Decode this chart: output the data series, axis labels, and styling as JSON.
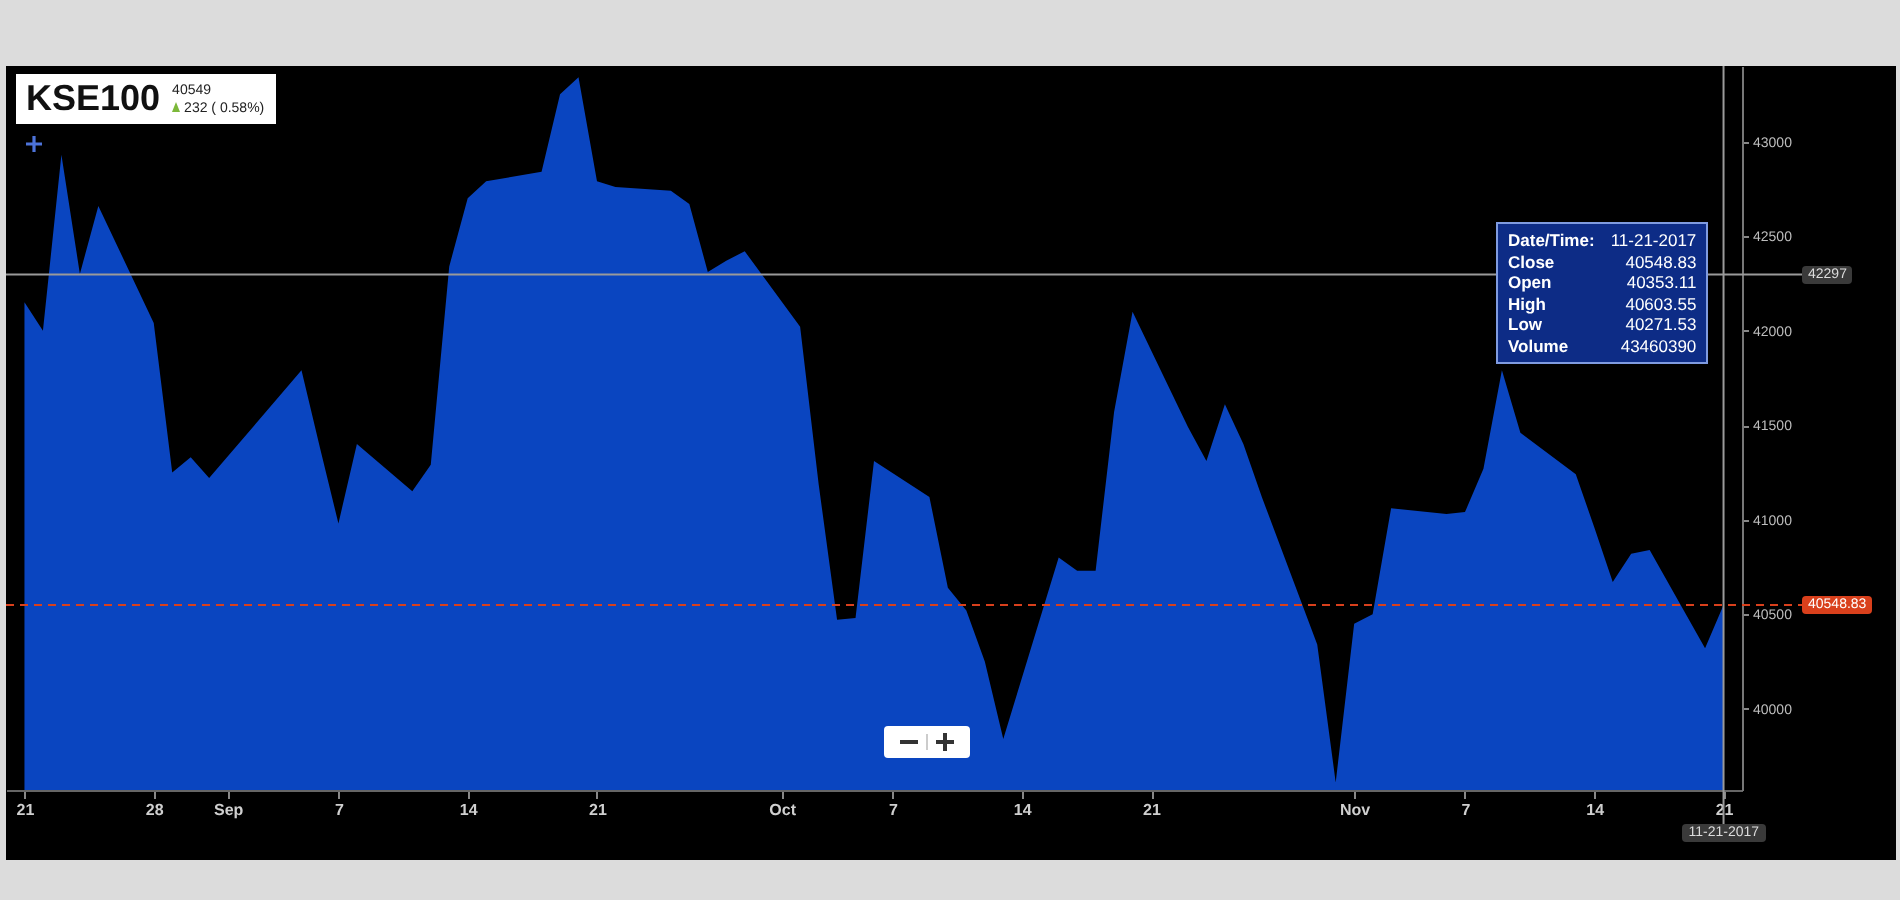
{
  "chart_data": {
    "type": "area",
    "title": "KSE100",
    "subtitle": "40549",
    "annotations": [
      "232 ( 0.58%)",
      "Date/Time:",
      "11-21-2017",
      "Close",
      "40548.83",
      "Open",
      "40353.11",
      "High",
      "40603.55",
      "Low",
      "40271.53",
      "Volume",
      "43460390"
    ],
    "x": [
      "2017-08-21",
      "2017-08-22",
      "2017-08-23",
      "2017-08-24",
      "2017-08-25",
      "2017-08-28",
      "2017-08-29",
      "2017-08-30",
      "2017-08-31",
      "2017-09-05",
      "2017-09-06",
      "2017-09-07",
      "2017-09-08",
      "2017-09-11",
      "2017-09-12",
      "2017-09-13",
      "2017-09-14",
      "2017-09-15",
      "2017-09-18",
      "2017-09-19",
      "2017-09-20",
      "2017-09-21",
      "2017-09-22",
      "2017-09-25",
      "2017-09-26",
      "2017-09-27",
      "2017-09-28",
      "2017-09-29",
      "2017-10-02",
      "2017-10-03",
      "2017-10-04",
      "2017-10-05",
      "2017-10-06",
      "2017-10-09",
      "2017-10-10",
      "2017-10-11",
      "2017-10-12",
      "2017-10-13",
      "2017-10-16",
      "2017-10-17",
      "2017-10-18",
      "2017-10-19",
      "2017-10-20",
      "2017-10-23",
      "2017-10-24",
      "2017-10-25",
      "2017-10-26",
      "2017-10-27",
      "2017-10-30",
      "2017-10-31",
      "2017-11-01",
      "2017-11-02",
      "2017-11-03",
      "2017-11-06",
      "2017-11-07",
      "2017-11-08",
      "2017-11-09",
      "2017-11-10",
      "2017-11-13",
      "2017-11-14",
      "2017-11-15",
      "2017-11-16",
      "2017-11-17",
      "2017-11-20",
      "2017-11-21"
    ],
    "series": [
      {
        "color": "#0a45c0",
        "values": [
          42150,
          42000,
          42930,
          42300,
          42660,
          42040,
          41250,
          41330,
          41220,
          41790,
          41380,
          40980,
          41400,
          41150,
          41290,
          42340,
          42700,
          42790,
          42840,
          43250,
          43340,
          42790,
          42760,
          42740,
          42670,
          42310,
          42370,
          42420,
          42020,
          41190,
          40470,
          40480,
          41310,
          41120,
          40640,
          40520,
          40250,
          39840,
          40800,
          40730,
          40730,
          41570,
          42100,
          41490,
          41310,
          41610,
          41400,
          41120,
          40340,
          39610,
          40450,
          40500,
          41060,
          41030,
          41040,
          41270,
          41790,
          41460,
          41240,
          40960,
          40670,
          40820,
          40840,
          40320,
          40548.83
        ]
      }
    ],
    "xlim": [
      "2017-08-20",
      "2017-11-22"
    ],
    "ylim": [
      39570,
      43400
    ],
    "xticks": [
      {
        "value": "2017-08-21",
        "label": "21"
      },
      {
        "value": "2017-08-28",
        "label": "28"
      },
      {
        "value": "2017-09-01",
        "label": "Sep"
      },
      {
        "value": "2017-09-07",
        "label": "7"
      },
      {
        "value": "2017-09-14",
        "label": "14"
      },
      {
        "value": "2017-09-21",
        "label": "21"
      },
      {
        "value": "2017-10-01",
        "label": "Oct"
      },
      {
        "value": "2017-10-07",
        "label": "7"
      },
      {
        "value": "2017-10-14",
        "label": "14"
      },
      {
        "value": "2017-10-21",
        "label": "21"
      },
      {
        "value": "2017-11-01",
        "label": "Nov"
      },
      {
        "value": "2017-11-07",
        "label": "7"
      },
      {
        "value": "2017-11-14",
        "label": "14"
      },
      {
        "value": "2017-11-21",
        "label": "21"
      }
    ],
    "yticks": [
      40000,
      40500,
      41000,
      41500,
      42000,
      42500,
      43000
    ],
    "ref_lines": [
      {
        "axis": "y",
        "value": 42297,
        "label": "42297",
        "color": "#9a9a9a",
        "line_style": "solid"
      },
      {
        "axis": "y",
        "value": 40548.83,
        "label": "40548.83",
        "color": "#d9401c",
        "line_style": "dashed"
      },
      {
        "axis": "x",
        "value": "2017-11-21",
        "label": "11-21-2017",
        "color": "#9a9a9a",
        "line_style": "solid"
      }
    ]
  }
}
